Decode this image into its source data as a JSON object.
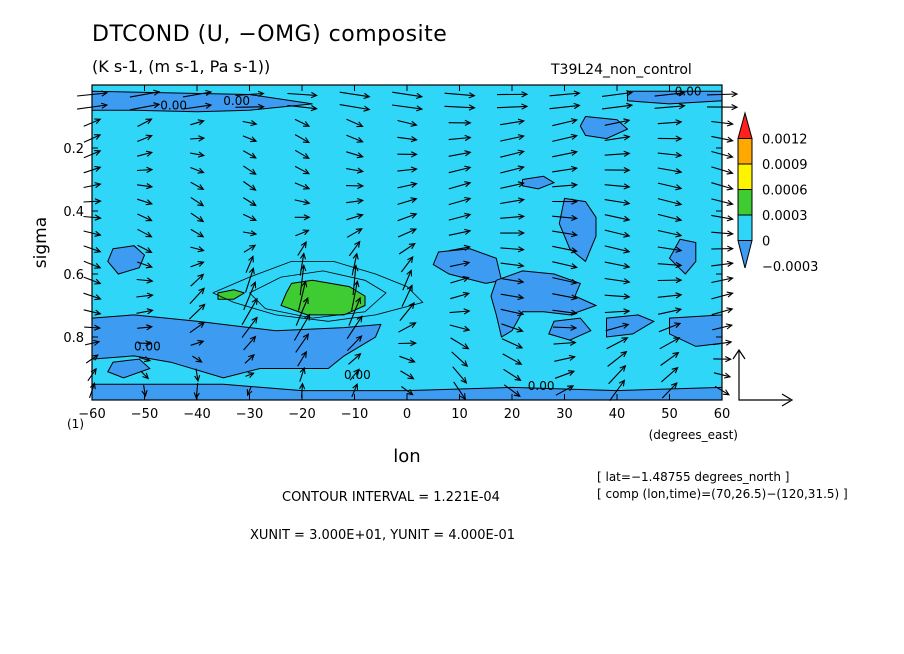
{
  "header": {
    "title": "DTCOND (U, −OMG) composite",
    "subtitle": "(K s-1, (m s-1, Pa s-1))",
    "run_name": "T39L24_non_control"
  },
  "footer": {
    "meta_line1": "[ lat=−1.48755 degrees_north ]",
    "meta_line2": "[ comp (lon,time)=(70,26.5)−(120,31.5) ]",
    "contour_interval": "CONTOUR INTERVAL = 1.221E-04",
    "units_line": "XUNIT = 3.000E+01, YUNIT = 4.000E-01"
  },
  "colors": {
    "shade_neg": "#3d9cf2",
    "shade_zero": "#2fd6f8",
    "shade_0003": "#3fcc32",
    "shade_0006": "#fff400",
    "shade_0009": "#ffa800",
    "shade_0012": "#ff2020",
    "arrow": "#000000"
  },
  "chart_data": {
    "type": "heatmap",
    "title": "DTCOND (U, −OMG) composite",
    "subtitle": "(K s-1, (m s-1, Pa s-1))",
    "xlabel": "lon",
    "xunit_label": "(degrees_east)",
    "ylabel": "sigma",
    "xlim": [
      -60,
      60
    ],
    "ylim": [
      1,
      0
    ],
    "x_ticks": [
      -60,
      -50,
      -40,
      -30,
      -20,
      -10,
      0,
      10,
      20,
      30,
      40,
      50,
      60
    ],
    "x_tick_labels": [
      "−60",
      "−50",
      "−40",
      "−30",
      "−20",
      "−10",
      "0",
      "10",
      "20",
      "30",
      "40",
      "50",
      "60"
    ],
    "y_ticks": [
      0.2,
      0.4,
      0.6,
      0.8
    ],
    "y_tick_labels": [
      "0.2",
      "0.4",
      "0.6",
      "0.8"
    ],
    "y_corner_label": "(1)",
    "colorbar": {
      "levels": [
        -0.0003,
        0,
        0.0003,
        0.0006,
        0.0009,
        0.0012
      ],
      "labels": [
        "−0.0003",
        "0",
        "0.0003",
        "0.0006",
        "0.0009",
        "0.0012"
      ]
    },
    "contour_labels": [
      {
        "text": "0.00",
        "lon": -35,
        "sigma": 0.05
      },
      {
        "text": "0.00",
        "lon": -47,
        "sigma": 0.065
      },
      {
        "text": "0.00",
        "lon": 51,
        "sigma": 0.02
      },
      {
        "text": "0.00",
        "lon": -52,
        "sigma": 0.83
      },
      {
        "text": "0.00",
        "lon": -12,
        "sigma": 0.92
      },
      {
        "text": "0.00",
        "lon": 23,
        "sigma": 0.955
      }
    ],
    "regions": [
      {
        "level": 0.0003,
        "poly": [
          [
            -22,
            0.63
          ],
          [
            -18,
            0.62
          ],
          [
            -11,
            0.64
          ],
          [
            -8,
            0.67
          ],
          [
            -8,
            0.7
          ],
          [
            -12,
            0.73
          ],
          [
            -19,
            0.73
          ],
          [
            -24,
            0.7
          ],
          [
            -23,
            0.66
          ]
        ]
      },
      {
        "level": 0.0003,
        "poly": [
          [
            -36,
            0.66
          ],
          [
            -33,
            0.65
          ],
          [
            -31,
            0.66
          ],
          [
            -33,
            0.68
          ],
          [
            -36,
            0.68
          ]
        ]
      },
      {
        "level": -0.0003,
        "poly": [
          [
            -60,
            0.74
          ],
          [
            -52,
            0.73
          ],
          [
            -40,
            0.75
          ],
          [
            -25,
            0.78
          ],
          [
            -12,
            0.77
          ],
          [
            -5,
            0.76
          ],
          [
            -6,
            0.8
          ],
          [
            -12,
            0.86
          ],
          [
            -15,
            0.9
          ],
          [
            -28,
            0.9
          ],
          [
            -35,
            0.93
          ],
          [
            -45,
            0.88
          ],
          [
            -52,
            0.86
          ],
          [
            -60,
            0.87
          ]
        ]
      },
      {
        "level": -0.0003,
        "poly": [
          [
            -60,
            0.95
          ],
          [
            -35,
            0.95
          ],
          [
            -20,
            0.97
          ],
          [
            0,
            0.97
          ],
          [
            20,
            0.96
          ],
          [
            40,
            0.97
          ],
          [
            60,
            0.96
          ],
          [
            60,
            1.0
          ],
          [
            -60,
            1.0
          ]
        ]
      },
      {
        "level": -0.0003,
        "poly": [
          [
            -60,
            0.02
          ],
          [
            -30,
            0.03
          ],
          [
            -18,
            0.06
          ],
          [
            -30,
            0.08
          ],
          [
            -40,
            0.085
          ],
          [
            -52,
            0.08
          ],
          [
            -60,
            0.08
          ]
        ]
      },
      {
        "level": -0.0003,
        "poly": [
          [
            42,
            0.02
          ],
          [
            60,
            0.02
          ],
          [
            60,
            0.05
          ],
          [
            50,
            0.06
          ],
          [
            42,
            0.05
          ]
        ]
      },
      {
        "level": -0.0003,
        "poly": [
          [
            34,
            0.1
          ],
          [
            40,
            0.11
          ],
          [
            42,
            0.14
          ],
          [
            38,
            0.17
          ],
          [
            34,
            0.16
          ],
          [
            33,
            0.13
          ]
        ]
      },
      {
        "level": -0.0003,
        "poly": [
          [
            -56,
            0.52
          ],
          [
            -52,
            0.51
          ],
          [
            -50,
            0.54
          ],
          [
            -51,
            0.58
          ],
          [
            -55,
            0.6
          ],
          [
            -57,
            0.56
          ]
        ]
      },
      {
        "level": -0.0003,
        "poly": [
          [
            6,
            0.53
          ],
          [
            12,
            0.52
          ],
          [
            17,
            0.55
          ],
          [
            18,
            0.62
          ],
          [
            15,
            0.63
          ],
          [
            8,
            0.6
          ],
          [
            5,
            0.57
          ]
        ]
      },
      {
        "level": -0.0003,
        "poly": [
          [
            17,
            0.62
          ],
          [
            22,
            0.59
          ],
          [
            28,
            0.6
          ],
          [
            33,
            0.63
          ],
          [
            32,
            0.67
          ],
          [
            36,
            0.7
          ],
          [
            31,
            0.73
          ],
          [
            26,
            0.72
          ],
          [
            22,
            0.72
          ],
          [
            20,
            0.78
          ],
          [
            18,
            0.8
          ],
          [
            17,
            0.73
          ],
          [
            16,
            0.67
          ]
        ]
      },
      {
        "level": -0.0003,
        "poly": [
          [
            30,
            0.36
          ],
          [
            34,
            0.37
          ],
          [
            36,
            0.42
          ],
          [
            36,
            0.48
          ],
          [
            34,
            0.56
          ],
          [
            31,
            0.52
          ],
          [
            29,
            0.44
          ]
        ]
      },
      {
        "level": -0.0003,
        "poly": [
          [
            52,
            0.49
          ],
          [
            55,
            0.5
          ],
          [
            55,
            0.56
          ],
          [
            53,
            0.6
          ],
          [
            50,
            0.55
          ]
        ]
      },
      {
        "level": -0.0003,
        "poly": [
          [
            28,
            0.75
          ],
          [
            33,
            0.74
          ],
          [
            35,
            0.78
          ],
          [
            31,
            0.81
          ],
          [
            27,
            0.79
          ]
        ]
      },
      {
        "level": -0.0003,
        "poly": [
          [
            38,
            0.74
          ],
          [
            44,
            0.73
          ],
          [
            47,
            0.75
          ],
          [
            43,
            0.79
          ],
          [
            38,
            0.8
          ]
        ]
      },
      {
        "level": -0.0003,
        "poly": [
          [
            50,
            0.74
          ],
          [
            60,
            0.73
          ],
          [
            60,
            0.82
          ],
          [
            55,
            0.83
          ],
          [
            50,
            0.79
          ]
        ]
      },
      {
        "level": -0.0003,
        "poly": [
          [
            -56,
            0.88
          ],
          [
            -51,
            0.87
          ],
          [
            -49,
            0.9
          ],
          [
            -54,
            0.93
          ],
          [
            -57,
            0.91
          ]
        ]
      },
      {
        "level": -0.0003,
        "poly": [
          [
            22,
            0.3
          ],
          [
            26,
            0.29
          ],
          [
            28,
            0.31
          ],
          [
            25,
            0.33
          ],
          [
            22,
            0.32
          ]
        ]
      }
    ],
    "contour_lines": [
      {
        "level": 0.0001,
        "points": [
          [
            -37,
            0.66
          ],
          [
            -30,
            0.61
          ],
          [
            -22,
            0.56
          ],
          [
            -14,
            0.56
          ],
          [
            -6,
            0.6
          ],
          [
            0,
            0.64
          ],
          [
            3,
            0.69
          ],
          [
            -6,
            0.73
          ],
          [
            -15,
            0.75
          ],
          [
            -25,
            0.73
          ],
          [
            -33,
            0.69
          ],
          [
            -37,
            0.66
          ]
        ]
      },
      {
        "level": 0.0002,
        "points": [
          [
            -30,
            0.66
          ],
          [
            -24,
            0.61
          ],
          [
            -16,
            0.59
          ],
          [
            -8,
            0.62
          ],
          [
            -4,
            0.66
          ],
          [
            -8,
            0.72
          ],
          [
            -18,
            0.74
          ],
          [
            -27,
            0.71
          ],
          [
            -30,
            0.66
          ]
        ]
      }
    ],
    "vectors": {
      "lon": [
        -60,
        -50,
        -40,
        -30,
        -20,
        -10,
        0,
        10,
        20,
        30,
        40,
        50,
        60
      ],
      "sigma": [
        0.03,
        0.07,
        0.12,
        0.17,
        0.22,
        0.27,
        0.32,
        0.37,
        0.42,
        0.47,
        0.52,
        0.57,
        0.62,
        0.67,
        0.72,
        0.77,
        0.82,
        0.87,
        0.92,
        0.97
      ],
      "reference_vector": {
        "xunit": 30,
        "yunit": 0.4
      }
    }
  }
}
